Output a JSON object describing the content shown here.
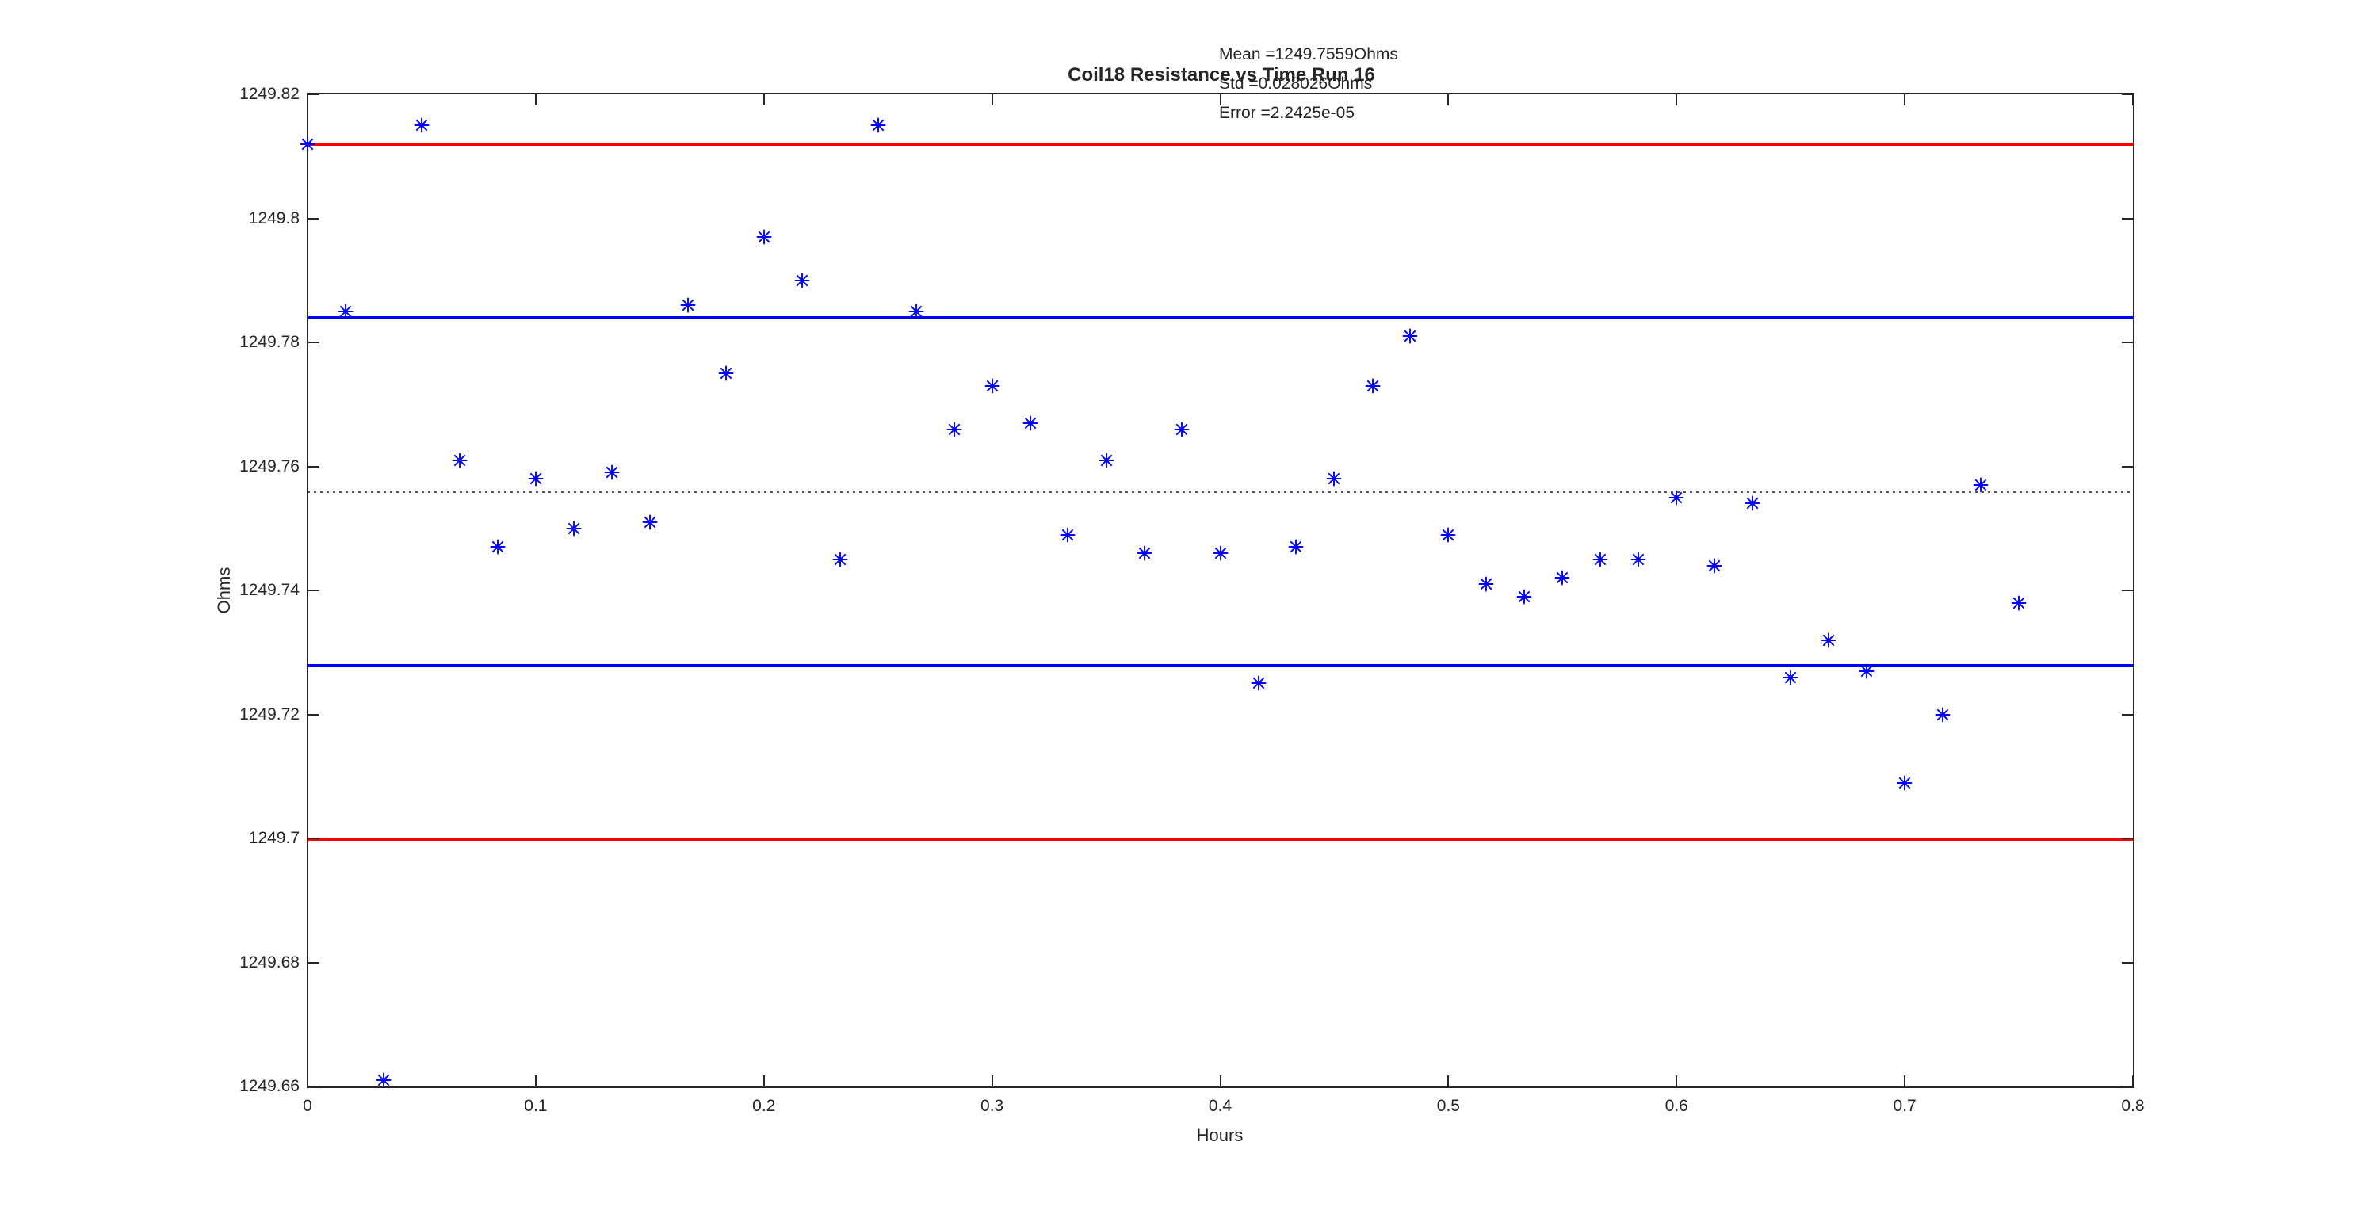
{
  "figure": {
    "title": "Coil18 Resistance vs Time Run 16",
    "xlabel": "Hours",
    "ylabel": "Ohms",
    "annotations": {
      "mean": "Mean =1249.7559Ohms",
      "std": "Std =0.028026Ohms",
      "error": "Error =2.2425e-05"
    }
  },
  "colors": {
    "marker": "#0000ff",
    "sigma_line": "#0000ff",
    "two_sigma_line": "#ff0000",
    "mean_line": "#555555",
    "axis": "#262626",
    "text": "#262626",
    "background": "#ffffff"
  },
  "chart_data": {
    "type": "scatter",
    "title": "Coil18 Resistance vs Time Run 16",
    "xlabel": "Hours",
    "ylabel": "Ohms",
    "xlim": [
      0,
      0.8
    ],
    "ylim": [
      1249.66,
      1249.82
    ],
    "grid": false,
    "legend": false,
    "marker": "asterisk",
    "x_ticks": {
      "values": [
        0,
        0.1,
        0.2,
        0.3,
        0.4,
        0.5,
        0.6,
        0.7,
        0.8
      ],
      "labels": [
        "0",
        "0.1",
        "0.2",
        "0.3",
        "0.4",
        "0.5",
        "0.6",
        "0.7",
        "0.8"
      ]
    },
    "y_ticks": {
      "values": [
        1249.66,
        1249.68,
        1249.7,
        1249.72,
        1249.74,
        1249.76,
        1249.78,
        1249.8,
        1249.82
      ],
      "labels": [
        "1249.66",
        "1249.68",
        "1249.7",
        "1249.72",
        "1249.74",
        "1249.76",
        "1249.78",
        "1249.8",
        "1249.82"
      ]
    },
    "series": [
      {
        "name": "Coil18 resistance",
        "x": [
          0,
          0.0167,
          0.0333,
          0.05,
          0.0667,
          0.0833,
          0.1,
          0.1167,
          0.1333,
          0.15,
          0.1667,
          0.1833,
          0.2,
          0.2167,
          0.2333,
          0.25,
          0.2667,
          0.2833,
          0.3,
          0.3167,
          0.3333,
          0.35,
          0.3667,
          0.3833,
          0.4,
          0.4167,
          0.4333,
          0.45,
          0.4667,
          0.4833,
          0.5,
          0.5167,
          0.5333,
          0.55,
          0.5667,
          0.5833,
          0.6,
          0.6167,
          0.6333,
          0.65,
          0.6667,
          0.6833,
          0.7,
          0.7167,
          0.7333,
          0.75
        ],
        "y": [
          1249.812,
          1249.785,
          1249.661,
          1249.815,
          1249.761,
          1249.747,
          1249.758,
          1249.75,
          1249.759,
          1249.751,
          1249.786,
          1249.775,
          1249.797,
          1249.79,
          1249.745,
          1249.815,
          1249.785,
          1249.766,
          1249.773,
          1249.767,
          1249.749,
          1249.761,
          1249.746,
          1249.766,
          1249.746,
          1249.725,
          1249.747,
          1249.758,
          1249.773,
          1249.781,
          1249.749,
          1249.741,
          1249.739,
          1249.742,
          1249.745,
          1249.745,
          1249.755,
          1249.744,
          1249.754,
          1249.726,
          1249.732,
          1249.727,
          1249.709,
          1249.72,
          1249.757,
          1249.738
        ]
      }
    ],
    "reference_lines": [
      {
        "name": "mean-plus-2std",
        "value": 1249.8119,
        "color": "#ff0000",
        "style": "solid"
      },
      {
        "name": "mean-plus-1std",
        "value": 1249.7839,
        "color": "#0000ff",
        "style": "solid"
      },
      {
        "name": "mean",
        "value": 1249.7559,
        "color": "#555555",
        "style": "dotted"
      },
      {
        "name": "mean-minus-1std",
        "value": 1249.7279,
        "color": "#0000ff",
        "style": "solid"
      },
      {
        "name": "mean-minus-2std",
        "value": 1249.6999,
        "color": "#ff0000",
        "style": "solid"
      }
    ],
    "stats": {
      "mean_ohms": "1249.7559",
      "std_ohms": "0.028026",
      "error": "2.2425e-05"
    }
  }
}
